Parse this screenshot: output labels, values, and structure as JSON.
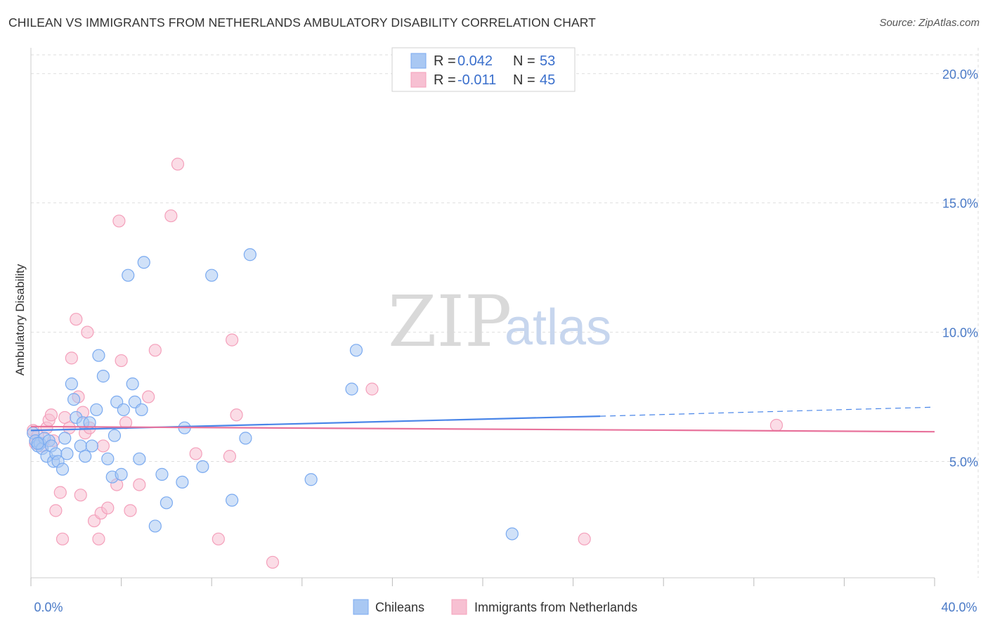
{
  "header": {
    "title": "CHILEAN VS IMMIGRANTS FROM NETHERLANDS AMBULATORY DISABILITY CORRELATION CHART",
    "source": "Source: ZipAtlas.com"
  },
  "watermark": {
    "zip": "ZIP",
    "atlas": "atlas"
  },
  "legend_top": {
    "rows": [
      {
        "r_label": "R = ",
        "r_value": "0.042",
        "n_label": "N = ",
        "n_value": "53",
        "color": "#7aaaf0"
      },
      {
        "r_label": "R = ",
        "r_value": "-0.011",
        "n_label": "N = ",
        "n_value": "45",
        "color": "#f4a0bb"
      }
    ]
  },
  "legend_bottom": [
    {
      "label": "Chileans",
      "color": "#7aaaf0"
    },
    {
      "label": "Immigrants from Netherlands",
      "color": "#f4a0bb"
    }
  ],
  "chart_data": {
    "type": "scatter",
    "title": "CHILEAN VS IMMIGRANTS FROM NETHERLANDS AMBULATORY DISABILITY CORRELATION CHART",
    "xlabel": "",
    "ylabel": "Ambulatory Disability",
    "xlim": [
      0,
      40
    ],
    "ylim": [
      0.5,
      21
    ],
    "x_tick_labels": [
      "0.0%",
      "40.0%"
    ],
    "y_ticks": [
      5,
      10,
      15,
      20
    ],
    "y_tick_labels": [
      "5.0%",
      "10.0%",
      "15.0%",
      "20.0%"
    ],
    "grid": true,
    "legend_position": "top-center",
    "colors": {
      "chileans": "#4a86e8",
      "netherlands": "#e8739c",
      "chileans_fill": "#a9c8f3",
      "netherlands_fill": "#f7c0d2"
    },
    "series": [
      {
        "name": "Chileans",
        "trend": {
          "x": [
            0,
            25.2
          ],
          "y": [
            6.2,
            6.75
          ],
          "dashed_to_x": 40,
          "dashed_to_y": 7.1
        },
        "points": [
          [
            0.1,
            6.1
          ],
          [
            0.2,
            5.8
          ],
          [
            0.3,
            5.6
          ],
          [
            0.4,
            5.7
          ],
          [
            0.5,
            5.5
          ],
          [
            0.6,
            5.9
          ],
          [
            0.7,
            5.2
          ],
          [
            0.8,
            5.8
          ],
          [
            0.9,
            5.6
          ],
          [
            1.0,
            5.0
          ],
          [
            1.1,
            5.3
          ],
          [
            1.2,
            5.0
          ],
          [
            1.4,
            4.7
          ],
          [
            1.5,
            5.9
          ],
          [
            1.6,
            5.3
          ],
          [
            1.8,
            8.0
          ],
          [
            1.9,
            7.4
          ],
          [
            2.0,
            6.7
          ],
          [
            2.2,
            5.6
          ],
          [
            2.3,
            6.5
          ],
          [
            2.4,
            5.2
          ],
          [
            2.6,
            6.5
          ],
          [
            2.7,
            5.6
          ],
          [
            2.9,
            7.0
          ],
          [
            3.0,
            9.1
          ],
          [
            3.2,
            8.3
          ],
          [
            3.4,
            5.1
          ],
          [
            3.6,
            4.4
          ],
          [
            3.7,
            6.0
          ],
          [
            3.8,
            7.3
          ],
          [
            4.0,
            4.5
          ],
          [
            4.1,
            7.0
          ],
          [
            4.3,
            12.2
          ],
          [
            4.5,
            8.0
          ],
          [
            4.6,
            7.3
          ],
          [
            4.8,
            5.1
          ],
          [
            4.9,
            7.0
          ],
          [
            5.0,
            12.7
          ],
          [
            5.5,
            2.5
          ],
          [
            5.8,
            4.5
          ],
          [
            6.0,
            3.4
          ],
          [
            6.7,
            4.2
          ],
          [
            6.8,
            6.3
          ],
          [
            7.6,
            4.8
          ],
          [
            8.0,
            12.2
          ],
          [
            8.9,
            3.5
          ],
          [
            9.5,
            5.9
          ],
          [
            9.7,
            13.0
          ],
          [
            12.4,
            4.3
          ],
          [
            14.2,
            7.8
          ],
          [
            14.4,
            9.3
          ],
          [
            21.3,
            2.2
          ],
          [
            0.3,
            5.7
          ]
        ]
      },
      {
        "name": "Immigrants from Netherlands",
        "trend": {
          "x": [
            0,
            40
          ],
          "y": [
            6.35,
            6.15
          ]
        },
        "points": [
          [
            0.1,
            6.2
          ],
          [
            0.2,
            5.7
          ],
          [
            0.3,
            6.0
          ],
          [
            0.5,
            5.6
          ],
          [
            0.7,
            6.3
          ],
          [
            0.8,
            6.6
          ],
          [
            0.9,
            6.8
          ],
          [
            1.0,
            5.8
          ],
          [
            1.1,
            3.1
          ],
          [
            1.3,
            3.8
          ],
          [
            1.4,
            2.0
          ],
          [
            1.5,
            6.7
          ],
          [
            1.7,
            6.3
          ],
          [
            1.8,
            9.0
          ],
          [
            2.0,
            10.5
          ],
          [
            2.1,
            7.5
          ],
          [
            2.2,
            3.7
          ],
          [
            2.3,
            6.9
          ],
          [
            2.4,
            6.1
          ],
          [
            2.5,
            10.0
          ],
          [
            2.6,
            6.3
          ],
          [
            2.8,
            2.7
          ],
          [
            3.0,
            2.0
          ],
          [
            3.1,
            3.0
          ],
          [
            3.2,
            5.6
          ],
          [
            3.4,
            3.2
          ],
          [
            3.8,
            4.1
          ],
          [
            3.9,
            14.3
          ],
          [
            4.0,
            8.9
          ],
          [
            4.2,
            6.5
          ],
          [
            4.4,
            3.1
          ],
          [
            4.8,
            4.1
          ],
          [
            5.2,
            7.5
          ],
          [
            5.5,
            9.3
          ],
          [
            6.2,
            14.5
          ],
          [
            6.5,
            16.5
          ],
          [
            7.3,
            5.3
          ],
          [
            8.3,
            2.0
          ],
          [
            8.8,
            5.2
          ],
          [
            8.9,
            9.7
          ],
          [
            9.1,
            6.8
          ],
          [
            10.7,
            1.1
          ],
          [
            15.1,
            7.8
          ],
          [
            24.5,
            2.0
          ],
          [
            33.0,
            6.4
          ]
        ]
      }
    ]
  }
}
